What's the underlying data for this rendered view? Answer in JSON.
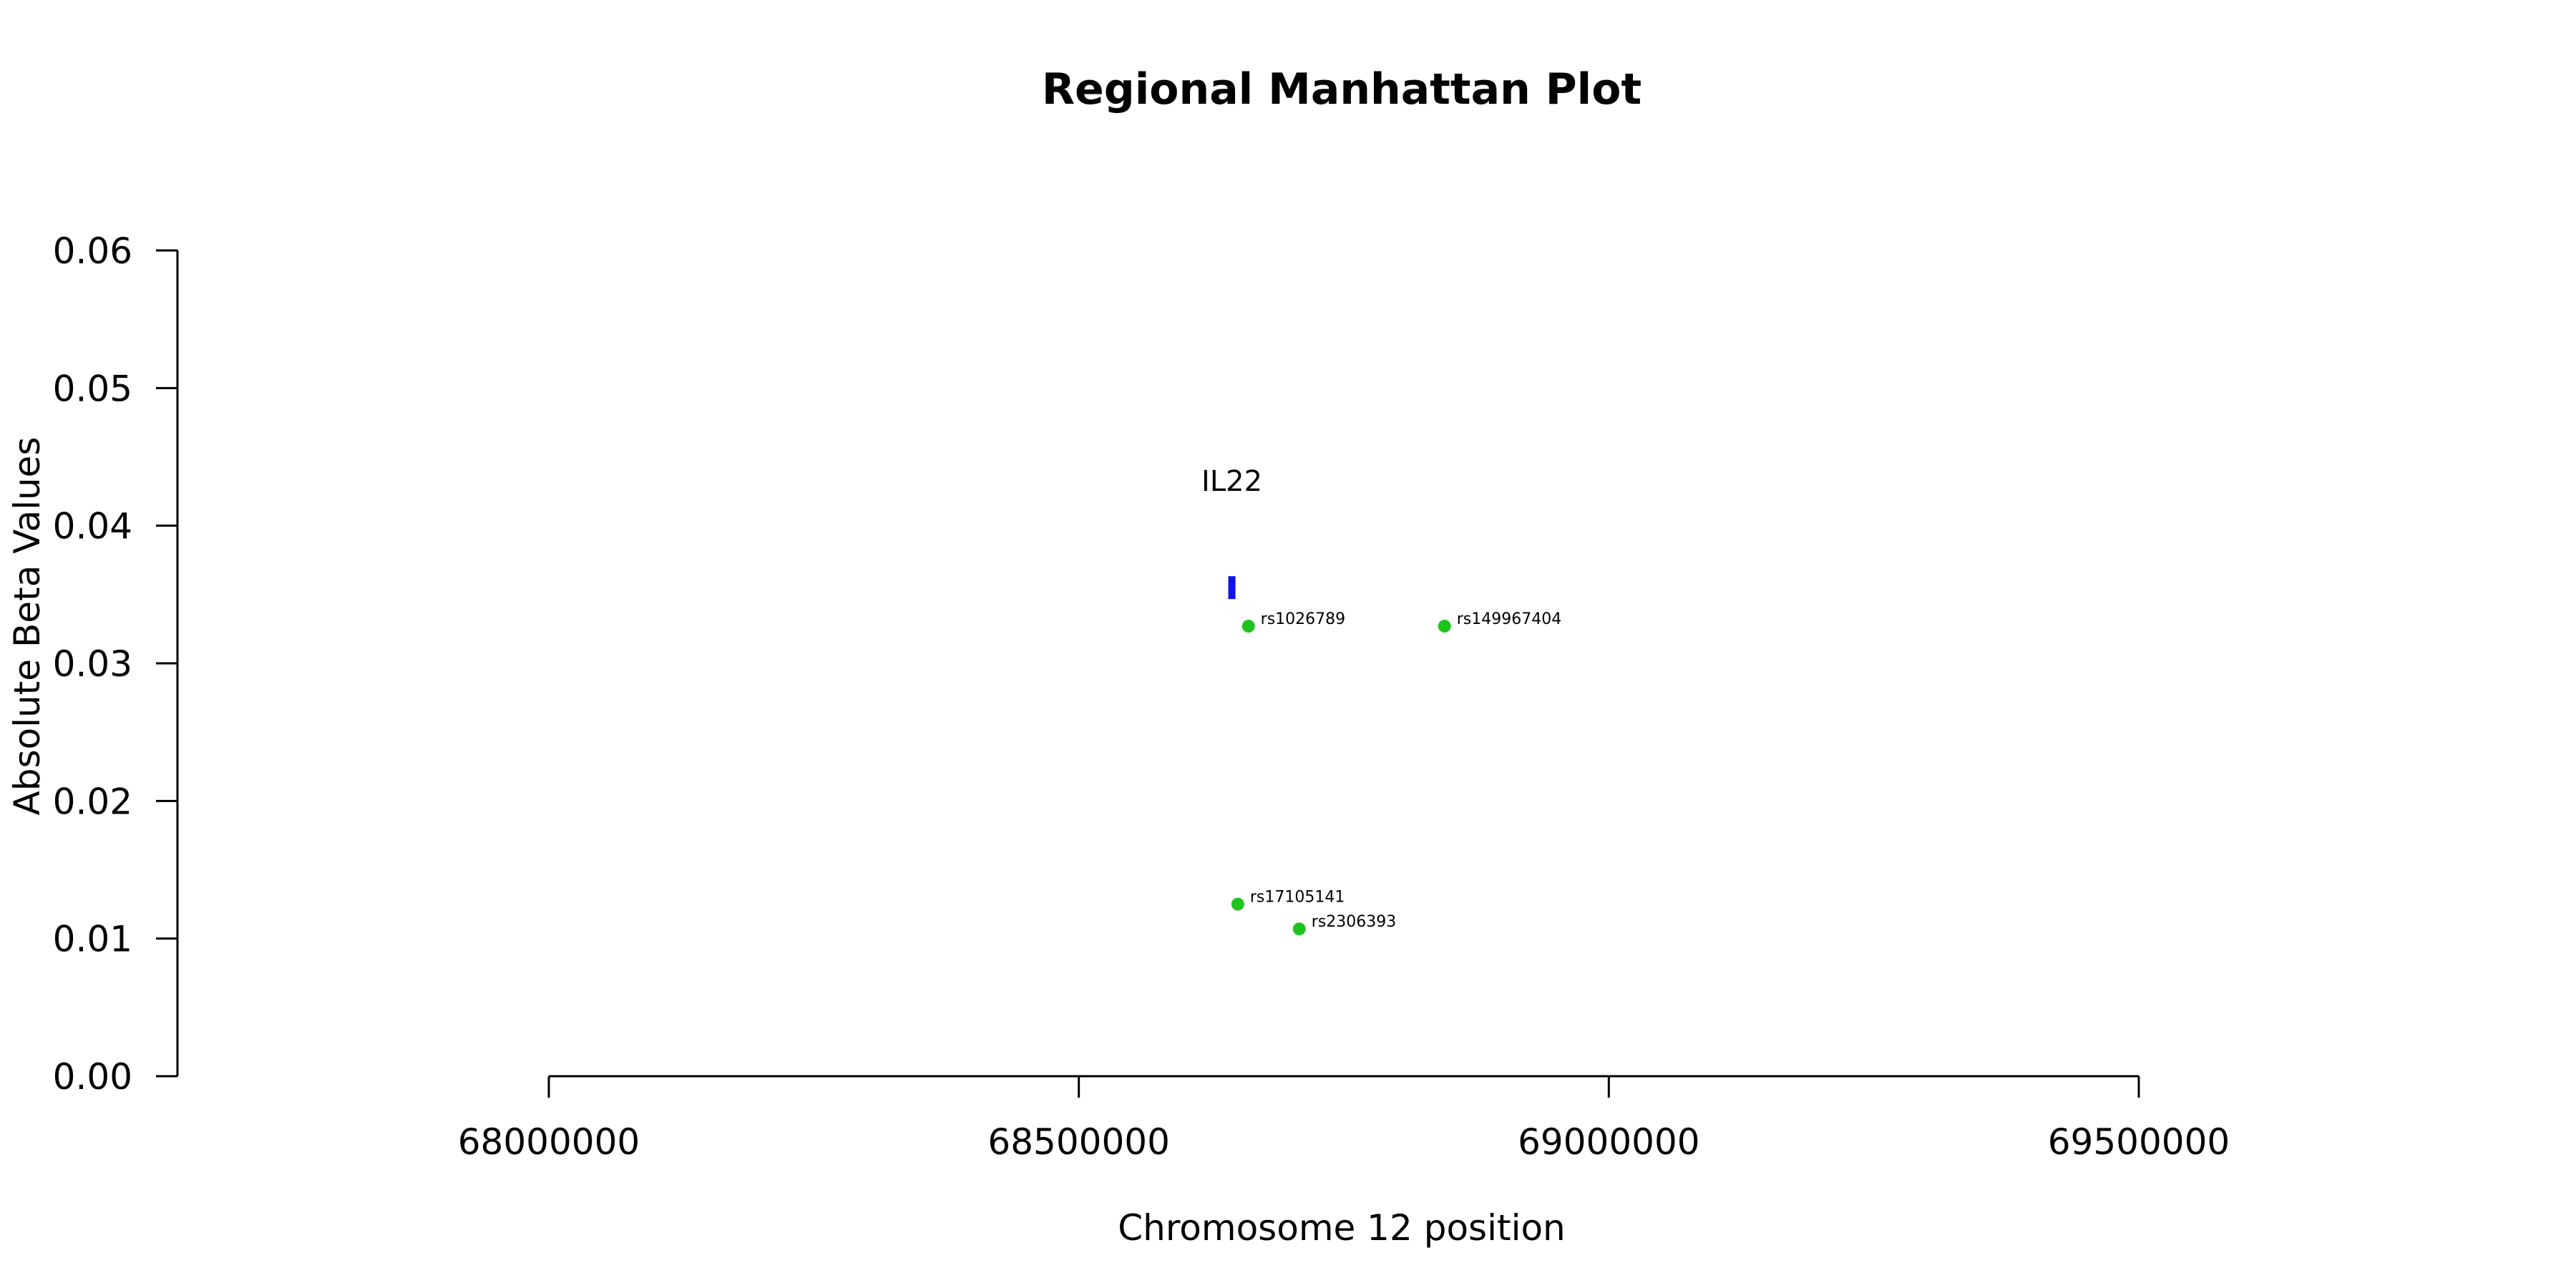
{
  "chart_data": {
    "type": "scatter",
    "title": "Regional Manhattan Plot",
    "xlabel": "Chromosome 12 position",
    "ylabel": "Absolute Beta Values",
    "xlim": [
      68000000,
      69500000
    ],
    "ylim": [
      0,
      0.06
    ],
    "x_ticks": [
      68000000,
      68500000,
      69000000,
      69500000
    ],
    "x_tick_labels": [
      "68000000",
      "68500000",
      "69000000",
      "69500000"
    ],
    "y_ticks": [
      0,
      0.01,
      0.02,
      0.03,
      0.04,
      0.05,
      0.06
    ],
    "y_tick_labels": [
      "0.00",
      "0.01",
      "0.02",
      "0.03",
      "0.04",
      "0.05",
      "0.06"
    ],
    "grid": false,
    "points": [
      {
        "label": "rs1026789",
        "x": 68660000,
        "y": 0.0327
      },
      {
        "label": "rs149967404",
        "x": 68845000,
        "y": 0.0327
      },
      {
        "label": "rs17105141",
        "x": 68650000,
        "y": 0.0125
      },
      {
        "label": "rs2306393",
        "x": 68708000,
        "y": 0.0107
      }
    ],
    "point_color": "#1ec31e",
    "gene": {
      "name": "IL22",
      "x_start": 68641000,
      "x_end": 68646000,
      "y": 0.0355
    },
    "gene_color": "#1111ee"
  }
}
